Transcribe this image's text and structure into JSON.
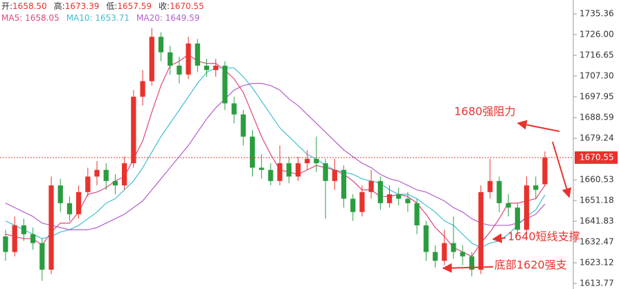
{
  "chart_data": {
    "type": "candlestick",
    "header": [
      {
        "label": "开:",
        "value": "1658.50"
      },
      {
        "label": "高:",
        "value": "1673.39"
      },
      {
        "label": "低:",
        "value": "1657.59"
      },
      {
        "label": "收:",
        "value": "1670.55"
      }
    ],
    "up_color": "#e8322d",
    "down_color": "#2a9d3f",
    "ohlc": [
      [
        1635,
        1638,
        1624,
        1628
      ],
      [
        1628,
        1644,
        1626,
        1640
      ],
      [
        1640,
        1643,
        1633,
        1636
      ],
      [
        1636,
        1639,
        1629,
        1632
      ],
      [
        1632,
        1634,
        1615,
        1620
      ],
      [
        1620,
        1662,
        1618,
        1658
      ],
      [
        1658,
        1661,
        1646,
        1650
      ],
      [
        1650,
        1653,
        1642,
        1645
      ],
      [
        1645,
        1658,
        1643,
        1655
      ],
      [
        1655,
        1666,
        1653,
        1662
      ],
      [
        1662,
        1669,
        1658,
        1665
      ],
      [
        1665,
        1668,
        1656,
        1660
      ],
      [
        1660,
        1663,
        1654,
        1658
      ],
      [
        1658,
        1671,
        1656,
        1668
      ],
      [
        1668,
        1701,
        1666,
        1698
      ],
      [
        1698,
        1710,
        1694,
        1705
      ],
      [
        1705,
        1729,
        1703,
        1725
      ],
      [
        1725,
        1727,
        1714,
        1718
      ],
      [
        1718,
        1721,
        1708,
        1712
      ],
      [
        1712,
        1716,
        1704,
        1708
      ],
      [
        1708,
        1725,
        1706,
        1722
      ],
      [
        1722,
        1724,
        1709,
        1712
      ],
      [
        1712,
        1715,
        1707,
        1710
      ],
      [
        1710,
        1715,
        1707,
        1712
      ],
      [
        1712,
        1714,
        1692,
        1695
      ],
      [
        1695,
        1698,
        1686,
        1690
      ],
      [
        1690,
        1692,
        1676,
        1680
      ],
      [
        1680,
        1683,
        1662,
        1666
      ],
      [
        1666,
        1672,
        1661,
        1665
      ],
      [
        1665,
        1668,
        1658,
        1660
      ],
      [
        1660,
        1676,
        1658,
        1668
      ],
      [
        1668,
        1671,
        1659,
        1662
      ],
      [
        1662,
        1671,
        1660,
        1668
      ],
      [
        1668,
        1674,
        1665,
        1670
      ],
      [
        1670,
        1680,
        1664,
        1668
      ],
      [
        1668,
        1670,
        1643,
        1660
      ],
      [
        1660,
        1670,
        1656,
        1665
      ],
      [
        1665,
        1667,
        1648,
        1652
      ],
      [
        1652,
        1654,
        1642,
        1646
      ],
      [
        1646,
        1658,
        1644,
        1655
      ],
      [
        1655,
        1665,
        1652,
        1660
      ],
      [
        1660,
        1662,
        1647,
        1650
      ],
      [
        1650,
        1658,
        1648,
        1654
      ],
      [
        1654,
        1657,
        1649,
        1652
      ],
      [
        1652,
        1655,
        1646,
        1650
      ],
      [
        1650,
        1652,
        1636,
        1640
      ],
      [
        1640,
        1642,
        1624,
        1628
      ],
      [
        1628,
        1631,
        1621,
        1624
      ],
      [
        1624,
        1638,
        1622,
        1632
      ],
      [
        1632,
        1644,
        1625,
        1628
      ],
      [
        1628,
        1631,
        1622,
        1626
      ],
      [
        1626,
        1628,
        1617,
        1620
      ],
      [
        1620,
        1658,
        1618,
        1655
      ],
      [
        1655,
        1670,
        1652,
        1660
      ],
      [
        1660,
        1662,
        1646,
        1650
      ],
      [
        1650,
        1654,
        1644,
        1648
      ],
      [
        1648,
        1650,
        1636,
        1638
      ],
      [
        1638,
        1662,
        1636,
        1658
      ],
      [
        1658,
        1662,
        1652,
        1656
      ],
      [
        1658.5,
        1673.39,
        1657.59,
        1670.55
      ]
    ],
    "series": [
      {
        "name": "MA5",
        "color": "#e0457a",
        "values": [
          1636,
          1635,
          1634,
          1634,
          1631,
          1637,
          1641,
          1641,
          1646,
          1654,
          1655,
          1657,
          1660,
          1662,
          1670,
          1678,
          1691,
          1703,
          1712,
          1714,
          1717,
          1714,
          1713,
          1713,
          1710,
          1706,
          1700,
          1690,
          1680,
          1672,
          1665,
          1664,
          1663,
          1665,
          1667,
          1666,
          1665,
          1663,
          1660,
          1656,
          1656,
          1653,
          1653,
          1654,
          1653,
          1650,
          1645,
          1639,
          1635,
          1630,
          1628,
          1626,
          1632,
          1637,
          1643,
          1650,
          1650,
          1651,
          1652,
          1658.05
        ]
      },
      {
        "name": "MA10",
        "color": "#3dbfcf",
        "values": [
          1642,
          1640,
          1638,
          1636,
          1634,
          1635,
          1637,
          1638,
          1640,
          1643,
          1646,
          1650,
          1652,
          1656,
          1660,
          1666,
          1673,
          1680,
          1686,
          1692,
          1698,
          1704,
          1709,
          1711,
          1711,
          1711,
          1707,
          1702,
          1696,
          1690,
          1684,
          1680,
          1676,
          1672,
          1670,
          1667,
          1665,
          1664,
          1663,
          1661,
          1660,
          1659,
          1656,
          1654,
          1654,
          1652,
          1649,
          1646,
          1642,
          1640,
          1636,
          1632,
          1630,
          1632,
          1633,
          1636,
          1640,
          1644,
          1647,
          1653.71
        ]
      },
      {
        "name": "MA20",
        "color": "#b15ccc",
        "values": [
          1650,
          1648,
          1646,
          1644,
          1641,
          1640,
          1639,
          1638,
          1638,
          1638,
          1639,
          1641,
          1643,
          1645,
          1648,
          1651,
          1656,
          1661,
          1666,
          1671,
          1676,
          1682,
          1688,
          1693,
          1697,
          1701,
          1703,
          1704,
          1704,
          1703,
          1701,
          1697,
          1694,
          1690,
          1686,
          1682,
          1678,
          1674,
          1671,
          1668,
          1666,
          1663,
          1661,
          1660,
          1658,
          1656,
          1655,
          1653,
          1651,
          1648,
          1646,
          1643,
          1641,
          1640,
          1640,
          1640,
          1641,
          1643,
          1645,
          1649.59
        ]
      }
    ],
    "last_price": 1670.55,
    "ylim": [
      1611.3,
      1741.6
    ],
    "yticks": [
      1735.36,
      {
        "value": 1726,
        "label": "1726.00"
      },
      1716.65,
      {
        "value": 1707.3,
        "label": "1707.30"
      },
      1697.95,
      1688.59,
      1679.24,
      1660.53,
      1651.18,
      1641.83,
      1632.47,
      1623.12,
      1613.77
    ],
    "annotations": [
      "1680强阻力",
      "1640短线支撑",
      "底部1620强支"
    ]
  }
}
